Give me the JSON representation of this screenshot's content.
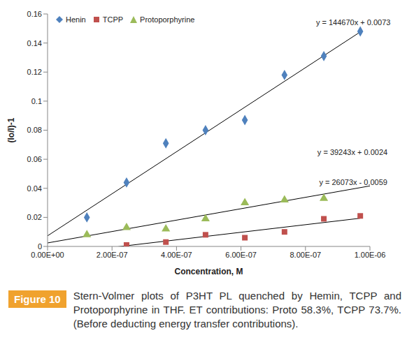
{
  "chart_data": {
    "type": "scatter",
    "x_label": "Concentration, M",
    "y_label": "(Io/I)-1",
    "xlim": [
      0,
      1e-06
    ],
    "xticks": [
      {
        "value": 0,
        "label": "0.00E+00"
      },
      {
        "value": 2e-07,
        "label": "2.00E-07"
      },
      {
        "value": 4e-07,
        "label": "4.00E-07"
      },
      {
        "value": 6e-07,
        "label": "6.00E-07"
      },
      {
        "value": 8e-07,
        "label": "8.00E-07"
      },
      {
        "value": 1e-06,
        "label": "1.00E-06"
      }
    ],
    "ylim": [
      0,
      0.16
    ],
    "yticks": [
      0,
      0.02,
      0.04,
      0.06,
      0.08,
      0.1,
      0.12,
      0.14,
      0.16
    ],
    "grid": false,
    "legend": "top-left",
    "series": [
      {
        "name": "Henin",
        "color": "#4f81bd",
        "marker": "diamond",
        "x": [
          1.22e-07,
          2.45e-07,
          3.67e-07,
          4.9e-07,
          6.12e-07,
          7.35e-07,
          8.57e-07,
          9.7e-07
        ],
        "values": [
          0.02,
          0.044,
          0.071,
          0.08,
          0.087,
          0.118,
          0.131,
          0.148
        ],
        "trendline": {
          "slope": 144670,
          "intercept": 0.0073,
          "x": [
            0,
            9.7e-07
          ],
          "label": "y = 144670x + 0.0073"
        }
      },
      {
        "name": "TCPP",
        "color": "#c0504d",
        "marker": "square",
        "x": [
          2.45e-07,
          3.67e-07,
          4.9e-07,
          6.12e-07,
          7.35e-07,
          8.57e-07,
          9.7e-07
        ],
        "values": [
          0.001,
          0.003,
          0.008,
          0.006,
          0.01,
          0.019,
          0.021
        ],
        "trendline": {
          "slope": 26073,
          "intercept": -0.0059,
          "x": [
            0,
            9.7e-07
          ],
          "label": "y = 26073x - 0.0059"
        }
      },
      {
        "name": "Protoporphyrine",
        "color": "#9bbb59",
        "marker": "triangle",
        "x": [
          1.22e-07,
          2.45e-07,
          3.67e-07,
          4.9e-07,
          6.12e-07,
          7.35e-07,
          8.57e-07
        ],
        "values": [
          0.008,
          0.013,
          0.012,
          0.019,
          0.03,
          0.032,
          0.033
        ],
        "trendline": {
          "slope": 39243,
          "intercept": 0.0024,
          "x": [
            0,
            1e-06
          ],
          "label": "y = 39243x + 0.0024"
        }
      }
    ],
    "caption": {
      "label": "Figure 10",
      "text": "Stern-Volmer plots of P3HT PL quenched by Hemin, TCPP and Protoporphyrine in THF. ET contributions: Proto 58.3%, TCPP 73.7%. (Before deducting energy transfer contributions)."
    }
  }
}
